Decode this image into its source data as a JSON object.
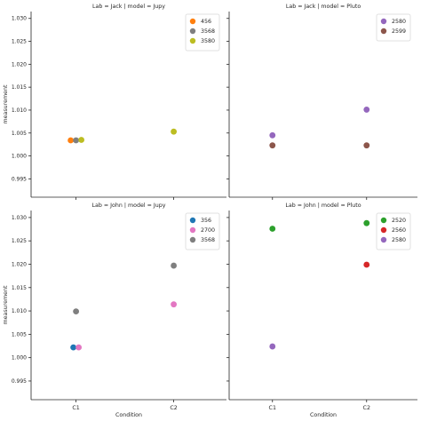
{
  "chart_data": {
    "type": "scatter",
    "ylabel": "measurement",
    "xlabel": "Condition",
    "categories": [
      "C1",
      "C2"
    ],
    "ylim": [
      0.991,
      1.0315
    ],
    "yticks": [
      0.995,
      1.0,
      1.005,
      1.01,
      1.015,
      1.02,
      1.025,
      1.03
    ],
    "ytick_labels": [
      "0.995",
      "1.000",
      "1.005",
      "1.010",
      "1.015",
      "1.020",
      "1.025",
      "1.030"
    ],
    "legend_placement": "top-right",
    "panels": [
      {
        "title": "Lab = Jack | model = Jupy",
        "series": [
          {
            "name": "456",
            "color": "#ff7f0e",
            "points": [
              {
                "x": "C1",
                "y": 1.0034
              }
            ]
          },
          {
            "name": "3568",
            "color": "#7f7f7f",
            "points": [
              {
                "x": "C1",
                "y": 1.0034
              }
            ]
          },
          {
            "name": "3580",
            "color": "#bcbd22",
            "points": [
              {
                "x": "C1",
                "y": 1.0035
              },
              {
                "x": "C2",
                "y": 1.0053
              }
            ]
          }
        ]
      },
      {
        "title": "Lab = Jack | model = Pluto",
        "series": [
          {
            "name": "2580",
            "color": "#9467bd",
            "points": [
              {
                "x": "C1",
                "y": 1.0045
              },
              {
                "x": "C2",
                "y": 1.0101
              }
            ]
          },
          {
            "name": "2599",
            "color": "#8c564b",
            "points": [
              {
                "x": "C1",
                "y": 1.0023
              },
              {
                "x": "C2",
                "y": 1.0023
              }
            ]
          }
        ]
      },
      {
        "title": "Lab = John | model = Jupy",
        "series": [
          {
            "name": "356",
            "color": "#1f77b4",
            "points": [
              {
                "x": "C1",
                "y": 1.0022
              }
            ]
          },
          {
            "name": "2700",
            "color": "#e377c2",
            "points": [
              {
                "x": "C1",
                "y": 1.0022
              },
              {
                "x": "C2",
                "y": 1.0114
              }
            ]
          },
          {
            "name": "3568",
            "color": "#7f7f7f",
            "points": [
              {
                "x": "C1",
                "y": 1.0099
              },
              {
                "x": "C2",
                "y": 1.0197
              }
            ]
          }
        ]
      },
      {
        "title": "Lab = John | model = Pluto",
        "series": [
          {
            "name": "2520",
            "color": "#2ca02c",
            "points": [
              {
                "x": "C1",
                "y": 1.0276
              },
              {
                "x": "C2",
                "y": 1.0288
              }
            ]
          },
          {
            "name": "2560",
            "color": "#d62728",
            "points": [
              {
                "x": "C2",
                "y": 1.0199
              }
            ]
          },
          {
            "name": "2580",
            "color": "#9467bd",
            "points": [
              {
                "x": "C1",
                "y": 1.0024
              }
            ]
          }
        ]
      }
    ]
  }
}
